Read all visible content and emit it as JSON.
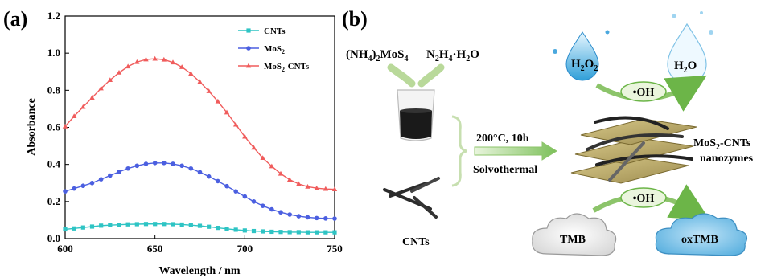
{
  "panel_a": {
    "label": "(a)"
  },
  "panel_b": {
    "label": "(b)",
    "precursor_1": "(NH4)2MoS4",
    "precursor_2": "N2H4·H2O",
    "cnts_label": "CNTs",
    "condition_top": "200°C, 10h",
    "condition_bottom": "Solvothermal",
    "reactant_top": "H2O2",
    "product_top": "H2O",
    "radical_top": "•OH",
    "radical_bottom": "•OH",
    "product_name_line1": "MoS2-CNTs",
    "product_name_line2": "nanozymes",
    "substrate": "TMB",
    "oxidized": "oxTMB"
  },
  "chart_data": {
    "type": "line",
    "xlabel": "Wavelength / nm",
    "ylabel": "Absorbance",
    "xlim": [
      600,
      750
    ],
    "ylim": [
      0.0,
      1.2
    ],
    "xticks": [
      600,
      650,
      700,
      750
    ],
    "yticks": [
      0.0,
      0.2,
      0.4,
      0.6,
      0.8,
      1.0,
      1.2
    ],
    "legend_position": "top-right",
    "series": [
      {
        "name": "CNTs",
        "color": "#2ec4c4",
        "marker": "square",
        "x": [
          600,
          605,
          610,
          615,
          620,
          625,
          630,
          635,
          640,
          645,
          650,
          655,
          660,
          665,
          670,
          675,
          680,
          685,
          690,
          695,
          700,
          705,
          710,
          715,
          720,
          725,
          730,
          735,
          740,
          745,
          750
        ],
        "y": [
          0.05,
          0.055,
          0.06,
          0.065,
          0.07,
          0.073,
          0.075,
          0.077,
          0.078,
          0.079,
          0.079,
          0.079,
          0.078,
          0.076,
          0.073,
          0.069,
          0.064,
          0.058,
          0.053,
          0.048,
          0.044,
          0.041,
          0.039,
          0.037,
          0.036,
          0.035,
          0.035,
          0.034,
          0.034,
          0.034,
          0.034
        ]
      },
      {
        "name": "MoS2",
        "color": "#4b5fe0",
        "marker": "circle",
        "x": [
          600,
          605,
          610,
          615,
          620,
          625,
          630,
          635,
          640,
          645,
          650,
          655,
          660,
          665,
          670,
          675,
          680,
          685,
          690,
          695,
          700,
          705,
          710,
          715,
          720,
          725,
          730,
          735,
          740,
          745,
          750
        ],
        "y": [
          0.255,
          0.27,
          0.285,
          0.3,
          0.32,
          0.34,
          0.36,
          0.378,
          0.393,
          0.403,
          0.408,
          0.408,
          0.403,
          0.393,
          0.378,
          0.358,
          0.335,
          0.31,
          0.283,
          0.255,
          0.227,
          0.2,
          0.177,
          0.158,
          0.142,
          0.13,
          0.121,
          0.115,
          0.111,
          0.109,
          0.108
        ]
      },
      {
        "name": "MoS2-CNTs",
        "color": "#f05c5c",
        "marker": "triangle",
        "x": [
          600,
          605,
          610,
          615,
          620,
          625,
          630,
          635,
          640,
          645,
          650,
          655,
          660,
          665,
          670,
          675,
          680,
          685,
          690,
          695,
          700,
          705,
          710,
          715,
          720,
          725,
          730,
          735,
          740,
          745,
          750
        ],
        "y": [
          0.605,
          0.66,
          0.71,
          0.76,
          0.81,
          0.855,
          0.895,
          0.928,
          0.952,
          0.966,
          0.97,
          0.965,
          0.95,
          0.925,
          0.89,
          0.845,
          0.795,
          0.74,
          0.68,
          0.615,
          0.55,
          0.49,
          0.435,
          0.39,
          0.35,
          0.318,
          0.295,
          0.28,
          0.272,
          0.268,
          0.266
        ]
      }
    ]
  }
}
